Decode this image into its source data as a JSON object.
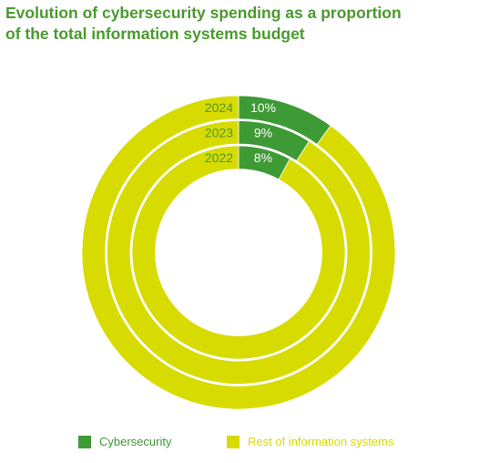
{
  "title": {
    "line1": "Evolution of cybersecurity spending as a proportion",
    "line2": "of the total information systems budget"
  },
  "colors": {
    "title": "#4a9a2e",
    "cybersecurity": "#3e9a35",
    "rest": "#d8db00",
    "ring_separator": "#ffffff"
  },
  "chart_data": {
    "type": "pie",
    "subtype": "nested-donut",
    "title": "Evolution of cybersecurity spending as a proportion of the total information systems budget",
    "rings": [
      {
        "label": "2024",
        "values": [
          10,
          90
        ],
        "value_label": "10%"
      },
      {
        "label": "2023",
        "values": [
          9,
          91
        ],
        "value_label": "9%"
      },
      {
        "label": "2022",
        "values": [
          8,
          92
        ],
        "value_label": "8%"
      }
    ],
    "series": [
      {
        "name": "Cybersecurity"
      },
      {
        "name": "Rest of information systems"
      }
    ],
    "legend_position": "bottom"
  },
  "legend": {
    "items": [
      {
        "label": "Cybersecurity",
        "color": "#3e9a35"
      },
      {
        "label": "Rest of information systems",
        "color": "#d8db00"
      }
    ]
  }
}
